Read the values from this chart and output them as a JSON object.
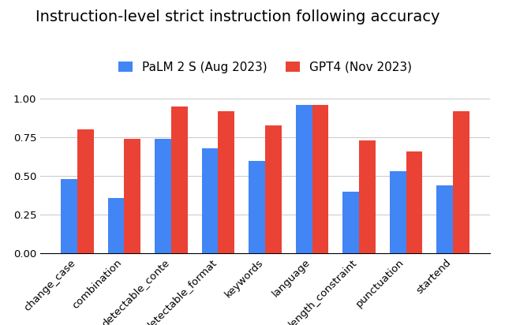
{
  "title": "Instruction-level strict instruction following accuracy",
  "categories": [
    "change_case",
    "combination",
    "detectable_conte",
    "detectable_format",
    "keywords",
    "language",
    "length_constraint",
    "punctuation",
    "startend"
  ],
  "palm_values": [
    0.48,
    0.36,
    0.74,
    0.68,
    0.6,
    0.96,
    0.4,
    0.53,
    0.44
  ],
  "gpt4_values": [
    0.8,
    0.74,
    0.95,
    0.92,
    0.83,
    0.96,
    0.73,
    0.66,
    0.92
  ],
  "palm_color": "#4285F4",
  "gpt4_color": "#EA4335",
  "palm_label": "PaLM 2 S (Aug 2023)",
  "gpt4_label": "GPT4 (Nov 2023)",
  "ylim": [
    0.0,
    1.05
  ],
  "yticks": [
    0.0,
    0.25,
    0.5,
    0.75,
    1.0
  ],
  "background_color": "#ffffff",
  "grid_color": "#cccccc",
  "title_fontsize": 14,
  "legend_fontsize": 11,
  "tick_fontsize": 9.5
}
